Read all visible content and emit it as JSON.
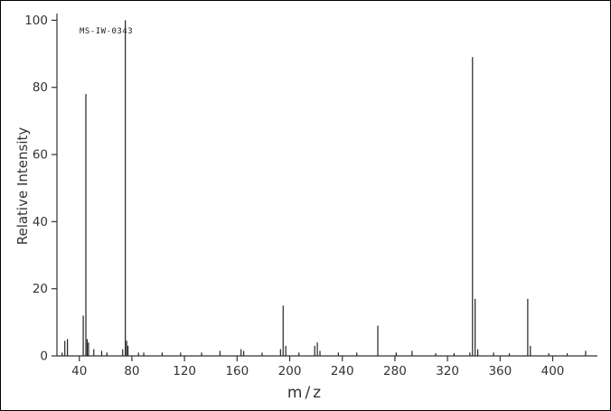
{
  "chart_data": {
    "type": "bar",
    "subtype": "mass-spectrum",
    "title": "MS-IW-0343",
    "xlabel": "m/z",
    "ylabel": "Relative Intensity",
    "xlim": [
      23,
      434
    ],
    "ylim": [
      0,
      102
    ],
    "x_ticks": [
      40,
      80,
      120,
      160,
      200,
      240,
      280,
      320,
      360,
      400
    ],
    "y_ticks": [
      0,
      20,
      40,
      60,
      80,
      100
    ],
    "grid": false,
    "legend": "none",
    "colors": {
      "background": "#ffffff",
      "border": "#000000",
      "axis": "#333333",
      "text": "#333333",
      "peak": "#222222"
    },
    "peaks": [
      {
        "mz": 27,
        "intensity": 1
      },
      {
        "mz": 29,
        "intensity": 4.5
      },
      {
        "mz": 31,
        "intensity": 5
      },
      {
        "mz": 43,
        "intensity": 12
      },
      {
        "mz": 45,
        "intensity": 78
      },
      {
        "mz": 46,
        "intensity": 5
      },
      {
        "mz": 47,
        "intensity": 4
      },
      {
        "mz": 51,
        "intensity": 2
      },
      {
        "mz": 57,
        "intensity": 1.5
      },
      {
        "mz": 61,
        "intensity": 1
      },
      {
        "mz": 73,
        "intensity": 2
      },
      {
        "mz": 75,
        "intensity": 100
      },
      {
        "mz": 76,
        "intensity": 4.5
      },
      {
        "mz": 77,
        "intensity": 3
      },
      {
        "mz": 85,
        "intensity": 1
      },
      {
        "mz": 89,
        "intensity": 1
      },
      {
        "mz": 103,
        "intensity": 1
      },
      {
        "mz": 117,
        "intensity": 1
      },
      {
        "mz": 133,
        "intensity": 1
      },
      {
        "mz": 147,
        "intensity": 1.5
      },
      {
        "mz": 163,
        "intensity": 2
      },
      {
        "mz": 165,
        "intensity": 1.5
      },
      {
        "mz": 179,
        "intensity": 1
      },
      {
        "mz": 193,
        "intensity": 2
      },
      {
        "mz": 195,
        "intensity": 15
      },
      {
        "mz": 197,
        "intensity": 3
      },
      {
        "mz": 207,
        "intensity": 1
      },
      {
        "mz": 219,
        "intensity": 3
      },
      {
        "mz": 221,
        "intensity": 4
      },
      {
        "mz": 223,
        "intensity": 1.5
      },
      {
        "mz": 237,
        "intensity": 1
      },
      {
        "mz": 251,
        "intensity": 1
      },
      {
        "mz": 267,
        "intensity": 9
      },
      {
        "mz": 281,
        "intensity": 1
      },
      {
        "mz": 293,
        "intensity": 1.5
      },
      {
        "mz": 311,
        "intensity": 0.8
      },
      {
        "mz": 325,
        "intensity": 0.8
      },
      {
        "mz": 337,
        "intensity": 1
      },
      {
        "mz": 339,
        "intensity": 89
      },
      {
        "mz": 341,
        "intensity": 17
      },
      {
        "mz": 343,
        "intensity": 2
      },
      {
        "mz": 355,
        "intensity": 1
      },
      {
        "mz": 367,
        "intensity": 0.8
      },
      {
        "mz": 381,
        "intensity": 17
      },
      {
        "mz": 383,
        "intensity": 3
      },
      {
        "mz": 397,
        "intensity": 0.8
      },
      {
        "mz": 411,
        "intensity": 0.8
      },
      {
        "mz": 425,
        "intensity": 1.5
      }
    ]
  }
}
